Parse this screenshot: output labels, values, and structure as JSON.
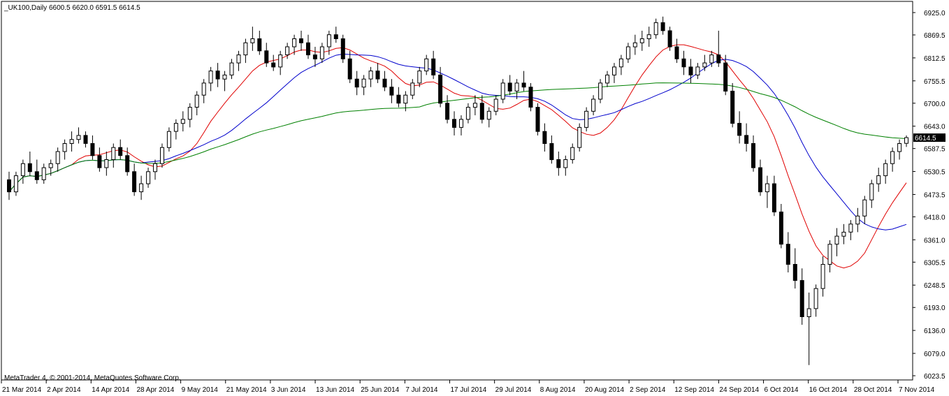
{
  "header": {
    "symbol_label": "_UK100,Daily",
    "ohlc_label": "6600.5 6620.0 6591.5 6614.5"
  },
  "footer": {
    "copyright": "MetaTrader 4, © 2001-2014, MetaQuotes Software Corp."
  },
  "current_price": {
    "value": 6614.5,
    "label": "6614.5"
  },
  "colors": {
    "background": "#ffffff",
    "frame": "#000000",
    "bull_body": "#ffffff",
    "bear_body": "#000000",
    "ma_fast": "#e00000",
    "ma_mid": "#0000cc",
    "ma_slow": "#008000"
  },
  "chart_data": {
    "type": "candlestick",
    "y_axis": {
      "min": 6023.5,
      "max": 6925.0,
      "ticks": [
        "6925.0",
        "6869.5",
        "6812.5",
        "6755.5",
        "6700.0",
        "6643.0",
        "6587.5",
        "6530.5",
        "6473.5",
        "6418.0",
        "6361.0",
        "6305.5",
        "6248.5",
        "6193.0",
        "6136.0",
        "6079.0",
        "6023.5"
      ]
    },
    "x_axis": {
      "labels": [
        "21 Mar 2014",
        "2 Apr 2014",
        "14 Apr 2014",
        "28 Apr 2014",
        "9 May 2014",
        "21 May 2014",
        "3 Jun 2014",
        "13 Jun 2014",
        "25 Jun 2014",
        "7 Jul 2014",
        "17 Jul 2014",
        "29 Jul 2014",
        "8 Aug 2014",
        "20 Aug 2014",
        "2 Sep 2014",
        "12 Sep 2014",
        "24 Sep 2014",
        "6 Oct 2014",
        "16 Oct 2014",
        "28 Oct 2014",
        "7 Nov 2014"
      ]
    },
    "candles": [
      [
        6510,
        6530,
        6460,
        6480
      ],
      [
        6480,
        6530,
        6470,
        6520
      ],
      [
        6520,
        6560,
        6500,
        6550
      ],
      [
        6550,
        6580,
        6520,
        6530
      ],
      [
        6530,
        6560,
        6500,
        6510
      ],
      [
        6510,
        6550,
        6500,
        6540
      ],
      [
        6540,
        6560,
        6520,
        6550
      ],
      [
        6550,
        6590,
        6530,
        6580
      ],
      [
        6580,
        6610,
        6560,
        6600
      ],
      [
        6600,
        6630,
        6580,
        6610
      ],
      [
        6610,
        6640,
        6600,
        6620
      ],
      [
        6620,
        6630,
        6590,
        6600
      ],
      [
        6600,
        6620,
        6560,
        6570
      ],
      [
        6570,
        6590,
        6530,
        6540
      ],
      [
        6540,
        6580,
        6520,
        6560
      ],
      [
        6560,
        6600,
        6540,
        6590
      ],
      [
        6590,
        6610,
        6560,
        6570
      ],
      [
        6570,
        6590,
        6520,
        6530
      ],
      [
        6530,
        6550,
        6470,
        6480
      ],
      [
        6480,
        6520,
        6460,
        6500
      ],
      [
        6500,
        6540,
        6490,
        6530
      ],
      [
        6530,
        6560,
        6510,
        6550
      ],
      [
        6550,
        6600,
        6540,
        6590
      ],
      [
        6590,
        6640,
        6580,
        6630
      ],
      [
        6630,
        6660,
        6610,
        6650
      ],
      [
        6650,
        6680,
        6630,
        6660
      ],
      [
        6660,
        6700,
        6640,
        6690
      ],
      [
        6690,
        6730,
        6670,
        6720
      ],
      [
        6720,
        6760,
        6700,
        6750
      ],
      [
        6750,
        6790,
        6730,
        6780
      ],
      [
        6780,
        6800,
        6740,
        6760
      ],
      [
        6760,
        6780,
        6730,
        6770
      ],
      [
        6770,
        6810,
        6760,
        6800
      ],
      [
        6800,
        6830,
        6780,
        6820
      ],
      [
        6820,
        6860,
        6800,
        6850
      ],
      [
        6850,
        6890,
        6830,
        6860
      ],
      [
        6860,
        6880,
        6820,
        6830
      ],
      [
        6830,
        6850,
        6790,
        6800
      ],
      [
        6800,
        6820,
        6780,
        6790
      ],
      [
        6790,
        6830,
        6770,
        6820
      ],
      [
        6820,
        6850,
        6810,
        6840
      ],
      [
        6840,
        6870,
        6820,
        6860
      ],
      [
        6860,
        6880,
        6830,
        6850
      ],
      [
        6850,
        6870,
        6810,
        6820
      ],
      [
        6820,
        6840,
        6790,
        6810
      ],
      [
        6810,
        6850,
        6800,
        6840
      ],
      [
        6840,
        6880,
        6820,
        6870
      ],
      [
        6870,
        6890,
        6850,
        6860
      ],
      [
        6860,
        6870,
        6800,
        6810
      ],
      [
        6810,
        6830,
        6750,
        6760
      ],
      [
        6760,
        6780,
        6720,
        6740
      ],
      [
        6740,
        6770,
        6720,
        6760
      ],
      [
        6760,
        6790,
        6740,
        6780
      ],
      [
        6780,
        6800,
        6750,
        6760
      ],
      [
        6760,
        6780,
        6730,
        6740
      ],
      [
        6740,
        6760,
        6700,
        6720
      ],
      [
        6720,
        6740,
        6690,
        6700
      ],
      [
        6700,
        6730,
        6680,
        6720
      ],
      [
        6720,
        6760,
        6710,
        6750
      ],
      [
        6750,
        6790,
        6740,
        6780
      ],
      [
        6780,
        6820,
        6770,
        6810
      ],
      [
        6810,
        6830,
        6760,
        6770
      ],
      [
        6770,
        6790,
        6690,
        6700
      ],
      [
        6700,
        6720,
        6650,
        6660
      ],
      [
        6660,
        6680,
        6620,
        6640
      ],
      [
        6640,
        6670,
        6620,
        6660
      ],
      [
        6660,
        6700,
        6650,
        6690
      ],
      [
        6690,
        6720,
        6670,
        6700
      ],
      [
        6700,
        6720,
        6650,
        6660
      ],
      [
        6660,
        6690,
        6640,
        6680
      ],
      [
        6680,
        6720,
        6670,
        6710
      ],
      [
        6710,
        6760,
        6700,
        6750
      ],
      [
        6750,
        6770,
        6720,
        6730
      ],
      [
        6730,
        6760,
        6710,
        6750
      ],
      [
        6750,
        6780,
        6730,
        6740
      ],
      [
        6740,
        6750,
        6680,
        6690
      ],
      [
        6690,
        6700,
        6620,
        6630
      ],
      [
        6630,
        6650,
        6580,
        6600
      ],
      [
        6600,
        6620,
        6550,
        6560
      ],
      [
        6560,
        6580,
        6520,
        6540
      ],
      [
        6540,
        6570,
        6520,
        6560
      ],
      [
        6560,
        6600,
        6550,
        6590
      ],
      [
        6590,
        6650,
        6580,
        6640
      ],
      [
        6640,
        6690,
        6630,
        6680
      ],
      [
        6680,
        6720,
        6670,
        6710
      ],
      [
        6710,
        6760,
        6700,
        6750
      ],
      [
        6750,
        6780,
        6740,
        6770
      ],
      [
        6770,
        6800,
        6750,
        6790
      ],
      [
        6790,
        6820,
        6770,
        6810
      ],
      [
        6810,
        6850,
        6800,
        6840
      ],
      [
        6840,
        6870,
        6820,
        6850
      ],
      [
        6850,
        6880,
        6830,
        6860
      ],
      [
        6860,
        6890,
        6840,
        6870
      ],
      [
        6870,
        6910,
        6860,
        6900
      ],
      [
        6900,
        6915,
        6870,
        6880
      ],
      [
        6880,
        6890,
        6830,
        6840
      ],
      [
        6840,
        6860,
        6800,
        6810
      ],
      [
        6810,
        6830,
        6770,
        6790
      ],
      [
        6790,
        6810,
        6750,
        6770
      ],
      [
        6770,
        6800,
        6760,
        6790
      ],
      [
        6790,
        6820,
        6780,
        6800
      ],
      [
        6800,
        6830,
        6790,
        6820
      ],
      [
        6820,
        6880,
        6790,
        6800
      ],
      [
        6800,
        6820,
        6720,
        6730
      ],
      [
        6730,
        6750,
        6640,
        6650
      ],
      [
        6650,
        6680,
        6600,
        6620
      ],
      [
        6620,
        6650,
        6580,
        6600
      ],
      [
        6600,
        6620,
        6530,
        6540
      ],
      [
        6540,
        6560,
        6470,
        6480
      ],
      [
        6480,
        6520,
        6440,
        6500
      ],
      [
        6500,
        6520,
        6420,
        6430
      ],
      [
        6430,
        6450,
        6340,
        6350
      ],
      [
        6350,
        6380,
        6280,
        6300
      ],
      [
        6300,
        6340,
        6240,
        6260
      ],
      [
        6260,
        6290,
        6150,
        6170
      ],
      [
        6170,
        6230,
        6050,
        6190
      ],
      [
        6190,
        6250,
        6170,
        6240
      ],
      [
        6240,
        6320,
        6220,
        6300
      ],
      [
        6300,
        6360,
        6280,
        6350
      ],
      [
        6350,
        6390,
        6320,
        6370
      ],
      [
        6370,
        6400,
        6350,
        6380
      ],
      [
        6380,
        6410,
        6360,
        6400
      ],
      [
        6400,
        6440,
        6380,
        6420
      ],
      [
        6420,
        6470,
        6400,
        6460
      ],
      [
        6460,
        6510,
        6440,
        6500
      ],
      [
        6500,
        6540,
        6480,
        6520
      ],
      [
        6520,
        6560,
        6500,
        6550
      ],
      [
        6550,
        6590,
        6530,
        6580
      ],
      [
        6580,
        6610,
        6560,
        6600
      ],
      [
        6600.5,
        6620,
        6591.5,
        6614.5
      ]
    ],
    "moving_averages": [
      {
        "period": 10,
        "color": "#e00000"
      },
      {
        "period": 20,
        "color": "#0000cc"
      },
      {
        "period": 60,
        "color": "#008000"
      }
    ],
    "grid": false
  }
}
